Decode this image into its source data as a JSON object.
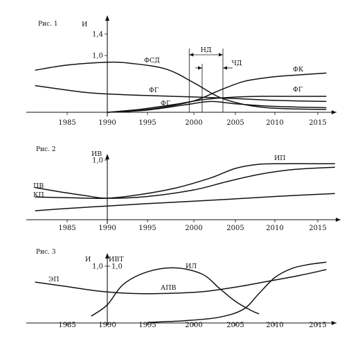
{
  "chart_data": [
    {
      "type": "line",
      "title": "Рис. 1",
      "ylabel": "И",
      "x_ticks": [
        1985,
        1990,
        1995,
        2000,
        2005,
        2010,
        2015
      ],
      "y_ticks": [
        {
          "value": 1.0,
          "label": "1,0"
        },
        {
          "value": 1.4,
          "label": "1,4"
        }
      ],
      "xlim": [
        1981,
        2017
      ],
      "ylim": [
        0,
        1.65
      ],
      "annotations": [
        {
          "text": "НД",
          "from": 1999.5,
          "to": 2003.5,
          "y": 1.05
        },
        {
          "text": "ЧД",
          "from": 2001,
          "to": 2003.5,
          "y": 0.78
        }
      ],
      "series": [
        {
          "name": "ФСД",
          "x": [
            1981,
            1985,
            1990,
            1993,
            1997,
            2000,
            2003,
            2006,
            2009,
            2012,
            2016
          ],
          "y": [
            0.74,
            0.83,
            0.88,
            0.86,
            0.76,
            0.52,
            0.27,
            0.14,
            0.08,
            0.06,
            0.05
          ]
        },
        {
          "name": "ФК",
          "x": [
            1990,
            1993,
            1996,
            2000,
            2003,
            2006,
            2009,
            2012,
            2016
          ],
          "y": [
            0.0,
            0.02,
            0.07,
            0.2,
            0.38,
            0.54,
            0.61,
            0.65,
            0.69
          ]
        },
        {
          "name": "ФГ",
          "x": [
            1981,
            1985,
            1988,
            1992,
            1996,
            2000,
            2005,
            2010,
            2016
          ],
          "y": [
            0.47,
            0.39,
            0.34,
            0.31,
            0.29,
            0.27,
            0.24,
            0.21,
            0.19
          ]
        },
        {
          "name": "ФГ",
          "x": [
            1990,
            1994,
            1998,
            2001,
            2004,
            2008,
            2012,
            2016
          ],
          "y": [
            0.0,
            0.05,
            0.14,
            0.22,
            0.26,
            0.28,
            0.28,
            0.28
          ]
        },
        {
          "name": "ФГ",
          "x": [
            1990,
            1995,
            1999,
            2002,
            2005,
            2009,
            2013,
            2016
          ],
          "y": [
            0.0,
            0.04,
            0.13,
            0.19,
            0.15,
            0.11,
            0.09,
            0.08
          ]
        }
      ]
    },
    {
      "type": "line",
      "title": "Рис. 2",
      "ylabel": "ИВ",
      "x_ticks": [
        1985,
        1990,
        1995,
        2000,
        2005,
        2010,
        2015
      ],
      "y_ticks": [
        {
          "value": 1.0,
          "label": "1,0"
        }
      ],
      "xlim": [
        1981,
        2017
      ],
      "ylim": [
        0,
        1.12
      ],
      "series": [
        {
          "name": "ИП",
          "x": [
            1981,
            1985,
            1990,
            1994,
            1998,
            2002,
            2005,
            2008,
            2011,
            2014,
            2017
          ],
          "y": [
            0.38,
            0.37,
            0.36,
            0.42,
            0.53,
            0.7,
            0.86,
            0.93,
            0.94,
            0.94,
            0.94
          ]
        },
        {
          "name": "КП",
          "x": [
            1981,
            1984,
            1987,
            1990,
            1995,
            2000,
            2004,
            2008,
            2012,
            2017
          ],
          "y": [
            0.54,
            0.47,
            0.41,
            0.36,
            0.39,
            0.5,
            0.64,
            0.76,
            0.84,
            0.88
          ]
        },
        {
          "name": "ПВ",
          "x": [
            1981,
            1985,
            1990,
            1995,
            2000,
            2005,
            2010,
            2017
          ],
          "y": [
            0.15,
            0.19,
            0.23,
            0.27,
            0.31,
            0.35,
            0.39,
            0.44
          ]
        }
      ]
    },
    {
      "type": "line",
      "title": "Рис. 3",
      "ylabel": "И",
      "ylabel2": "ИВТ",
      "x_ticks": [
        1985,
        1990,
        1995,
        2000,
        2005,
        2010,
        2015
      ],
      "y_ticks": [
        {
          "value": 1.0,
          "label": "1,0"
        }
      ],
      "y2_ticks": [
        {
          "value": 1.0,
          "label": "1,0"
        }
      ],
      "xlim": [
        1981,
        2017
      ],
      "ylim": [
        0,
        1.35
      ],
      "series": [
        {
          "name": "ЭП",
          "x": [
            1981,
            1985,
            1989,
            1993,
            1997,
            2001,
            2005,
            2009,
            2013,
            2016
          ],
          "y": [
            0.72,
            0.64,
            0.56,
            0.52,
            0.52,
            0.55,
            0.63,
            0.73,
            0.84,
            0.94
          ]
        },
        {
          "name": "АПВ",
          "x": [
            1988,
            1990,
            1992,
            1995,
            1998,
            2001,
            2003,
            2005,
            2007,
            2008
          ],
          "y": [
            0.12,
            0.32,
            0.68,
            0.9,
            0.97,
            0.86,
            0.62,
            0.38,
            0.22,
            0.16
          ]
        },
        {
          "name": "ИЛ",
          "x": [
            1995,
            1999,
            2003,
            2006,
            2008,
            2010,
            2012,
            2014,
            2016
          ],
          "y": [
            0.01,
            0.04,
            0.1,
            0.24,
            0.52,
            0.8,
            0.96,
            1.03,
            1.07
          ]
        }
      ]
    }
  ]
}
